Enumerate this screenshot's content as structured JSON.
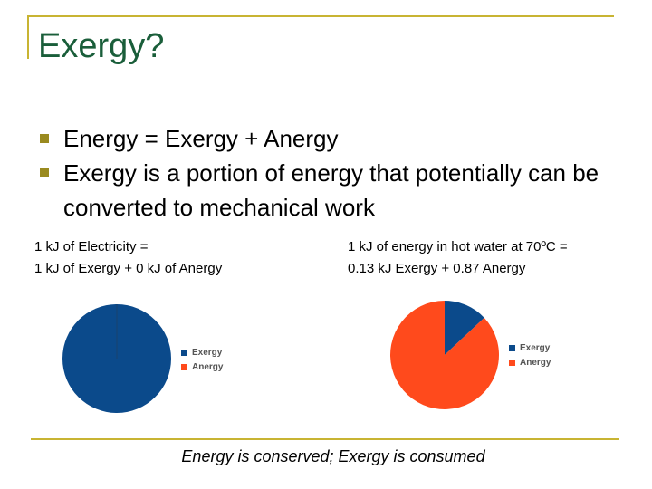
{
  "title": "Exergy?",
  "bullets": [
    "Energy = Exergy + Anergy",
    "Exergy is a portion of energy that potentially can be converted to mechanical work"
  ],
  "left_caption": {
    "line1": "1 kJ of Electricity =",
    "line2": "1 kJ of Exergy + 0 kJ of Anergy"
  },
  "right_caption": {
    "line1": "1 kJ of energy in hot water at 70ºC =",
    "line2": "0.13 kJ Exergy + 0.87 Anergy"
  },
  "colors": {
    "exergy": "#0b4a8b",
    "anergy": "#ff4a1c",
    "accent": "#c8b432",
    "title": "#1a5e3a"
  },
  "chart_data": [
    {
      "type": "pie",
      "categories": [
        "Exergy",
        "Anergy"
      ],
      "values": [
        1.0,
        0.0
      ],
      "legend": "right"
    },
    {
      "type": "pie",
      "categories": [
        "Exergy",
        "Anergy"
      ],
      "values": [
        0.13,
        0.87
      ],
      "legend": "right"
    }
  ],
  "footer": "Energy is conserved; Exergy is consumed"
}
